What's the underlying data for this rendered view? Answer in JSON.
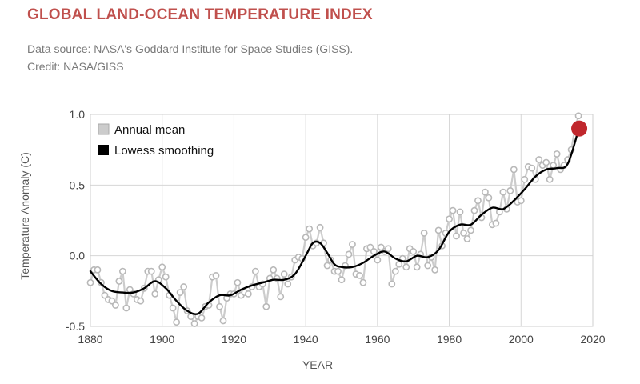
{
  "header": {
    "title": "GLOBAL LAND-OCEAN TEMPERATURE INDEX",
    "source": "Data source: NASA's Goddard Institute for Space Studies (GISS).",
    "credit": "Credit: NASA/GISS"
  },
  "chart_data": {
    "type": "line",
    "title": "GLOBAL LAND-OCEAN TEMPERATURE INDEX",
    "xlabel": "YEAR",
    "ylabel": "Temperature Anomaly (C)",
    "xlim": [
      1880,
      2020
    ],
    "ylim": [
      -0.5,
      1.0
    ],
    "xticks": [
      1880,
      1900,
      1920,
      1940,
      1960,
      1980,
      2000,
      2020
    ],
    "yticks": [
      -0.5,
      0.0,
      0.5,
      1.0
    ],
    "ytick_labels": [
      "-0.5",
      "0.0",
      "0.5",
      "1.0"
    ],
    "grid": true,
    "legend_position": "top-left",
    "colors": {
      "annual": "#cccccc",
      "annual_edge": "#b8b8b8",
      "smooth": "#000000",
      "highlight": "#c0272d"
    },
    "series": [
      {
        "name": "Annual mean",
        "x": [
          1880,
          1881,
          1882,
          1883,
          1884,
          1885,
          1886,
          1887,
          1888,
          1889,
          1890,
          1891,
          1892,
          1893,
          1894,
          1895,
          1896,
          1897,
          1898,
          1899,
          1900,
          1901,
          1902,
          1903,
          1904,
          1905,
          1906,
          1907,
          1908,
          1909,
          1910,
          1911,
          1912,
          1913,
          1914,
          1915,
          1916,
          1917,
          1918,
          1919,
          1920,
          1921,
          1922,
          1923,
          1924,
          1925,
          1926,
          1927,
          1928,
          1929,
          1930,
          1931,
          1932,
          1933,
          1934,
          1935,
          1936,
          1937,
          1938,
          1939,
          1940,
          1941,
          1942,
          1943,
          1944,
          1945,
          1946,
          1947,
          1948,
          1949,
          1950,
          1951,
          1952,
          1953,
          1954,
          1955,
          1956,
          1957,
          1958,
          1959,
          1960,
          1961,
          1962,
          1963,
          1964,
          1965,
          1966,
          1967,
          1968,
          1969,
          1970,
          1971,
          1972,
          1973,
          1974,
          1975,
          1976,
          1977,
          1978,
          1979,
          1980,
          1981,
          1982,
          1983,
          1984,
          1985,
          1986,
          1987,
          1988,
          1989,
          1990,
          1991,
          1992,
          1993,
          1994,
          1995,
          1996,
          1997,
          1998,
          1999,
          2000,
          2001,
          2002,
          2003,
          2004,
          2005,
          2006,
          2007,
          2008,
          2009,
          2010,
          2011,
          2012,
          2013,
          2014,
          2015,
          2016
        ],
        "values": [
          -0.19,
          -0.1,
          -0.1,
          -0.19,
          -0.28,
          -0.31,
          -0.32,
          -0.35,
          -0.18,
          -0.11,
          -0.37,
          -0.24,
          -0.27,
          -0.31,
          -0.32,
          -0.23,
          -0.11,
          -0.11,
          -0.27,
          -0.17,
          -0.08,
          -0.15,
          -0.28,
          -0.37,
          -0.47,
          -0.26,
          -0.22,
          -0.39,
          -0.43,
          -0.48,
          -0.43,
          -0.44,
          -0.36,
          -0.35,
          -0.15,
          -0.14,
          -0.36,
          -0.46,
          -0.3,
          -0.27,
          -0.27,
          -0.19,
          -0.28,
          -0.26,
          -0.27,
          -0.22,
          -0.11,
          -0.22,
          -0.2,
          -0.36,
          -0.16,
          -0.1,
          -0.16,
          -0.29,
          -0.13,
          -0.2,
          -0.15,
          -0.03,
          -0.01,
          -0.02,
          0.13,
          0.19,
          0.07,
          0.09,
          0.2,
          0.09,
          -0.07,
          -0.03,
          -0.11,
          -0.11,
          -0.17,
          -0.07,
          0.01,
          0.08,
          -0.13,
          -0.14,
          -0.19,
          0.05,
          0.06,
          0.03,
          -0.03,
          0.06,
          0.03,
          0.05,
          -0.2,
          -0.11,
          -0.06,
          -0.02,
          -0.08,
          0.05,
          0.03,
          -0.08,
          0.01,
          0.16,
          -0.07,
          -0.01,
          -0.1,
          0.18,
          0.07,
          0.16,
          0.26,
          0.32,
          0.14,
          0.31,
          0.16,
          0.12,
          0.18,
          0.32,
          0.39,
          0.27,
          0.45,
          0.41,
          0.22,
          0.23,
          0.31,
          0.45,
          0.33,
          0.46,
          0.61,
          0.38,
          0.39,
          0.54,
          0.63,
          0.62,
          0.54,
          0.68,
          0.64,
          0.66,
          0.54,
          0.64,
          0.72,
          0.61,
          0.64,
          0.68,
          0.75,
          0.9,
          0.99
        ]
      },
      {
        "name": "Lowess smoothing",
        "x": [
          1880,
          1883,
          1886,
          1889,
          1892,
          1895,
          1898,
          1901,
          1904,
          1907,
          1910,
          1913,
          1916,
          1919,
          1922,
          1925,
          1928,
          1931,
          1934,
          1937,
          1940,
          1942,
          1944,
          1946,
          1948,
          1950,
          1953,
          1956,
          1959,
          1962,
          1965,
          1968,
          1971,
          1974,
          1977,
          1980,
          1983,
          1986,
          1989,
          1992,
          1995,
          1998,
          2001,
          2004,
          2007,
          2010,
          2013,
          2016
        ],
        "values": [
          -0.11,
          -0.2,
          -0.25,
          -0.26,
          -0.26,
          -0.23,
          -0.18,
          -0.23,
          -0.32,
          -0.39,
          -0.41,
          -0.33,
          -0.28,
          -0.28,
          -0.24,
          -0.21,
          -0.19,
          -0.17,
          -0.17,
          -0.13,
          0.0,
          0.09,
          0.09,
          0.02,
          -0.06,
          -0.08,
          -0.08,
          -0.05,
          0.0,
          0.03,
          -0.02,
          -0.04,
          0.0,
          -0.01,
          0.04,
          0.17,
          0.22,
          0.22,
          0.29,
          0.34,
          0.33,
          0.39,
          0.47,
          0.56,
          0.61,
          0.62,
          0.65,
          0.89
        ]
      }
    ],
    "highlight": {
      "year": 2016,
      "value": 0.9
    }
  }
}
